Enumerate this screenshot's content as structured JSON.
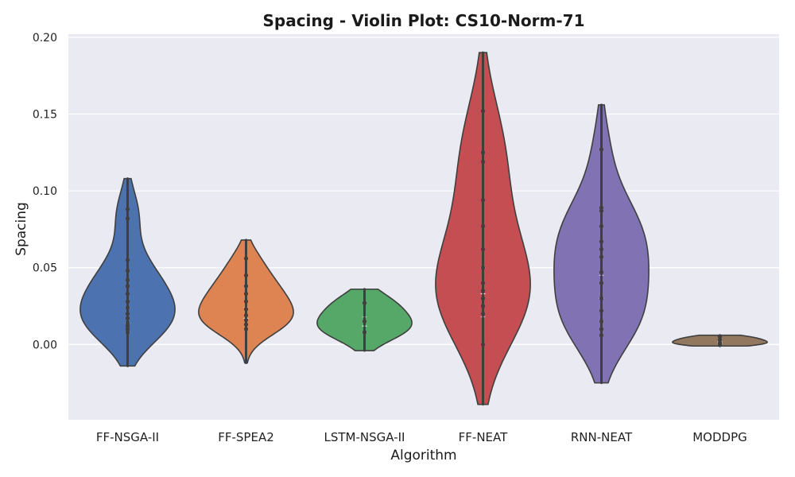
{
  "chart_data": {
    "type": "violin",
    "title": "Spacing - Violin Plot: CS10-Norm-71",
    "xlabel": "Algorithm",
    "ylabel": "Spacing",
    "ylim": [
      -0.049,
      0.202
    ],
    "yticks": [
      0.0,
      0.05,
      0.1,
      0.15,
      0.2
    ],
    "ytick_labels": [
      "0.00",
      "0.05",
      "0.10",
      "0.15",
      "0.20"
    ],
    "grid": true,
    "background": "#eaeaf2",
    "categories": [
      "FF-NSGA-II",
      "FF-SPEA2",
      "LSTM-NSGA-II",
      "FF-NEAT",
      "RNN-NEAT",
      "MODDPG"
    ],
    "series": [
      {
        "category": "FF-NSGA-II",
        "color": "#4c72b0",
        "range": [
          -0.014,
          0.108
        ],
        "points": [
          0.088,
          0.082,
          0.055,
          0.048,
          0.042,
          0.038,
          0.033,
          0.028,
          0.024,
          0.02,
          0.017,
          0.014,
          0.012,
          0.01,
          0.008
        ],
        "median": 0.014,
        "q1": 0.008,
        "q3": 0.024
      },
      {
        "category": "FF-SPEA2",
        "color": "#dd8452",
        "range": [
          -0.012,
          0.068
        ],
        "points": [
          0.056,
          0.045,
          0.038,
          0.033,
          0.028,
          0.023,
          0.019,
          0.016,
          0.013,
          0.01
        ],
        "median": 0.017,
        "q1": 0.01,
        "q3": 0.024
      },
      {
        "category": "LSTM-NSGA-II",
        "color": "#55a868",
        "range": [
          -0.004,
          0.036
        ],
        "points": [
          0.027,
          0.015,
          0.008
        ],
        "median": 0.012,
        "q1": 0.008,
        "q3": 0.018
      },
      {
        "category": "FF-NEAT",
        "color": "#c44e52",
        "range": [
          -0.039,
          0.19
        ],
        "points": [
          0.152,
          0.125,
          0.119,
          0.094,
          0.077,
          0.062,
          0.05,
          0.04,
          0.035,
          0.03,
          0.025,
          0.02,
          0.0
        ],
        "median": 0.033,
        "q1": 0.018,
        "q3": 0.05
      },
      {
        "category": "RNN-NEAT",
        "color": "#8172b3",
        "range": [
          -0.025,
          0.156
        ],
        "points": [
          0.127,
          0.089,
          0.087,
          0.077,
          0.067,
          0.062,
          0.057,
          0.047,
          0.04,
          0.03,
          0.022,
          0.015,
          0.01,
          0.006
        ],
        "median": 0.03,
        "q1": 0.015,
        "q3": 0.045
      },
      {
        "category": "MODDPG",
        "color": "#937860",
        "range": [
          -0.001,
          0.006
        ],
        "points": [
          0.005,
          0.003,
          0.001,
          0.0
        ],
        "median": 0.001,
        "q1": 0.0,
        "q3": 0.002
      }
    ]
  }
}
